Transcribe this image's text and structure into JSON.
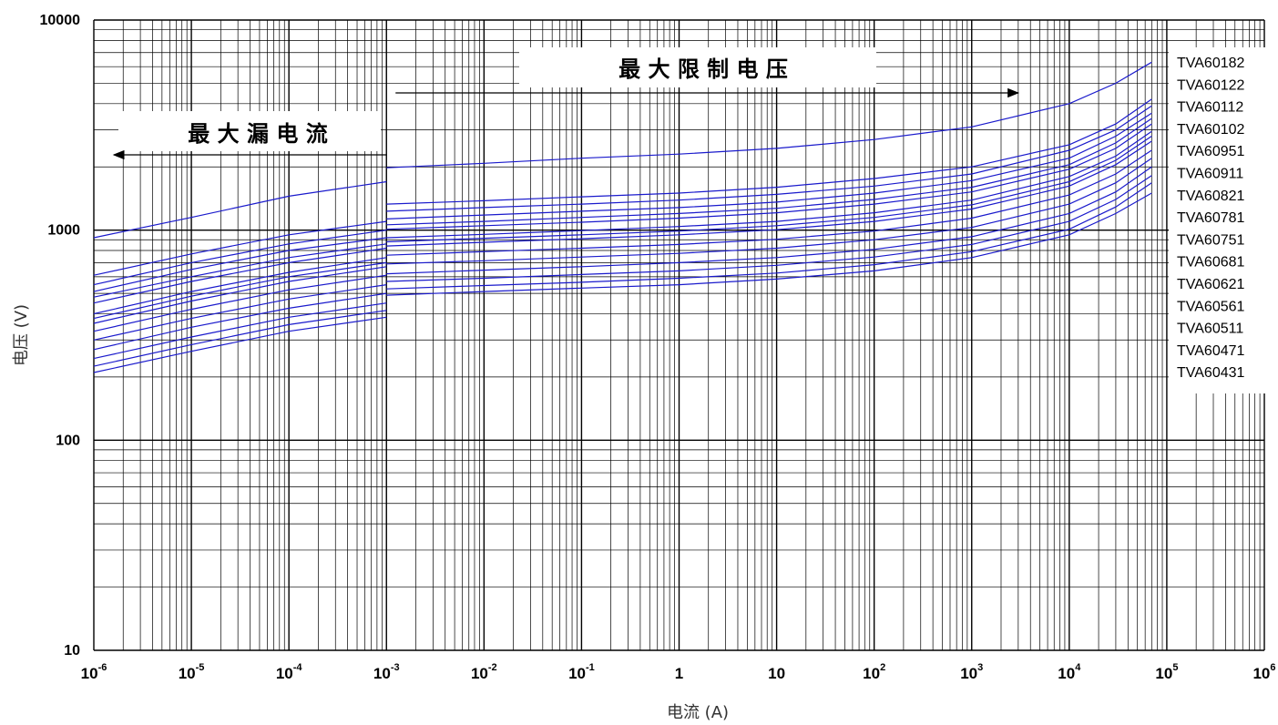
{
  "chart_data": {
    "type": "line",
    "xlabel": "电流 (A)",
    "ylabel": "电压 (V)",
    "x_scale": "log",
    "y_scale": "log",
    "xlim": [
      1e-06,
      1000000.0
    ],
    "ylim": [
      10,
      10000
    ],
    "grid": true,
    "x_ticks": [
      {
        "base": "10",
        "exp": "-6",
        "value": 1e-06
      },
      {
        "base": "10",
        "exp": "-5",
        "value": 1e-05
      },
      {
        "base": "10",
        "exp": "-4",
        "value": 0.0001
      },
      {
        "base": "10",
        "exp": "-3",
        "value": 0.001
      },
      {
        "base": "10",
        "exp": "-2",
        "value": 0.01
      },
      {
        "base": "10",
        "exp": "-1",
        "value": 0.1
      },
      {
        "base": "1",
        "exp": "",
        "value": 1
      },
      {
        "base": "10",
        "exp": "",
        "value": 10
      },
      {
        "base": "10",
        "exp": "2",
        "value": 100
      },
      {
        "base": "10",
        "exp": "3",
        "value": 1000
      },
      {
        "base": "10",
        "exp": "4",
        "value": 10000
      },
      {
        "base": "10",
        "exp": "5",
        "value": 100000
      },
      {
        "base": "10",
        "exp": "6",
        "value": 1000000
      }
    ],
    "y_ticks": [
      {
        "label": "10000",
        "value": 10000
      },
      {
        "label": "1000",
        "value": 1000
      },
      {
        "label": "100",
        "value": 100
      },
      {
        "label": "10",
        "value": 10
      }
    ],
    "annotations": [
      {
        "text": "最 大 漏 电 流",
        "arrow": "left",
        "from_x": 0.001,
        "to_x": 1e-06
      },
      {
        "text": "最 大 限 制 电 压",
        "arrow": "right",
        "from_x": 0.001,
        "to_x": 3000
      }
    ],
    "series": [
      {
        "name": "TVA60182",
        "leak": [
          [
            1e-06,
            920
          ],
          [
            1e-05,
            1150
          ],
          [
            0.0001,
            1450
          ],
          [
            0.001,
            1700
          ]
        ],
        "clamp": [
          [
            0.001,
            1980
          ],
          [
            0.01,
            2080
          ],
          [
            0.1,
            2200
          ],
          [
            1,
            2300
          ],
          [
            10,
            2450
          ],
          [
            100,
            2700
          ],
          [
            1000,
            3100
          ],
          [
            10000,
            4000
          ],
          [
            30000,
            5000
          ],
          [
            70000,
            6300
          ]
        ]
      },
      {
        "name": "TVA60122",
        "leak": [
          [
            1e-06,
            610
          ],
          [
            1e-05,
            770
          ],
          [
            0.0001,
            950
          ],
          [
            0.001,
            1100
          ]
        ],
        "clamp": [
          [
            0.001,
            1330
          ],
          [
            0.01,
            1380
          ],
          [
            0.1,
            1440
          ],
          [
            1,
            1500
          ],
          [
            10,
            1600
          ],
          [
            100,
            1760
          ],
          [
            1000,
            2000
          ],
          [
            10000,
            2550
          ],
          [
            30000,
            3200
          ],
          [
            70000,
            4200
          ]
        ]
      },
      {
        "name": "TVA60112",
        "leak": [
          [
            1e-06,
            550
          ],
          [
            1e-05,
            700
          ],
          [
            0.0001,
            860
          ],
          [
            0.001,
            1000
          ]
        ],
        "clamp": [
          [
            0.001,
            1230
          ],
          [
            0.01,
            1280
          ],
          [
            0.1,
            1330
          ],
          [
            1,
            1390
          ],
          [
            10,
            1480
          ],
          [
            100,
            1620
          ],
          [
            1000,
            1850
          ],
          [
            10000,
            2400
          ],
          [
            30000,
            3000
          ],
          [
            70000,
            3900
          ]
        ]
      },
      {
        "name": "TVA60102",
        "leak": [
          [
            1e-06,
            510
          ],
          [
            1e-05,
            650
          ],
          [
            0.0001,
            800
          ],
          [
            0.001,
            920
          ]
        ],
        "clamp": [
          [
            0.001,
            1130
          ],
          [
            0.01,
            1180
          ],
          [
            0.1,
            1230
          ],
          [
            1,
            1280
          ],
          [
            10,
            1360
          ],
          [
            100,
            1500
          ],
          [
            1000,
            1720
          ],
          [
            10000,
            2200
          ],
          [
            30000,
            2800
          ],
          [
            70000,
            3600
          ]
        ]
      },
      {
        "name": "TVA60951",
        "leak": [
          [
            1e-06,
            480
          ],
          [
            1e-05,
            600
          ],
          [
            0.0001,
            740
          ],
          [
            0.001,
            860
          ]
        ],
        "clamp": [
          [
            0.001,
            1060
          ],
          [
            0.01,
            1100
          ],
          [
            0.1,
            1150
          ],
          [
            1,
            1200
          ],
          [
            10,
            1270
          ],
          [
            100,
            1400
          ],
          [
            1000,
            1600
          ],
          [
            10000,
            2050
          ],
          [
            30000,
            2600
          ],
          [
            70000,
            3400
          ]
        ]
      },
      {
        "name": "TVA60911",
        "leak": [
          [
            1e-06,
            450
          ],
          [
            1e-05,
            570
          ],
          [
            0.0001,
            700
          ],
          [
            0.001,
            820
          ]
        ],
        "clamp": [
          [
            0.001,
            1010
          ],
          [
            0.01,
            1050
          ],
          [
            0.1,
            1090
          ],
          [
            1,
            1140
          ],
          [
            10,
            1210
          ],
          [
            100,
            1330
          ],
          [
            1000,
            1520
          ],
          [
            10000,
            1950
          ],
          [
            30000,
            2450
          ],
          [
            70000,
            3200
          ]
        ]
      },
      {
        "name": "TVA60821",
        "leak": [
          [
            1e-06,
            400
          ],
          [
            1e-05,
            510
          ],
          [
            0.0001,
            630
          ],
          [
            0.001,
            740
          ]
        ],
        "clamp": [
          [
            0.001,
            920
          ],
          [
            0.01,
            955
          ],
          [
            0.1,
            995
          ],
          [
            1,
            1040
          ],
          [
            10,
            1100
          ],
          [
            100,
            1210
          ],
          [
            1000,
            1390
          ],
          [
            10000,
            1800
          ],
          [
            30000,
            2250
          ],
          [
            70000,
            2950
          ]
        ]
      },
      {
        "name": "TVA60781",
        "leak": [
          [
            1e-06,
            380
          ],
          [
            1e-05,
            485
          ],
          [
            0.0001,
            600
          ],
          [
            0.001,
            700
          ]
        ],
        "clamp": [
          [
            0.001,
            880
          ],
          [
            0.01,
            915
          ],
          [
            0.1,
            950
          ],
          [
            1,
            990
          ],
          [
            10,
            1050
          ],
          [
            100,
            1150
          ],
          [
            1000,
            1320
          ],
          [
            10000,
            1700
          ],
          [
            30000,
            2150
          ],
          [
            70000,
            2800
          ]
        ]
      },
      {
        "name": "TVA60751",
        "leak": [
          [
            1e-06,
            360
          ],
          [
            1e-05,
            460
          ],
          [
            0.0001,
            570
          ],
          [
            0.001,
            670
          ]
        ],
        "clamp": [
          [
            0.001,
            840
          ],
          [
            0.01,
            875
          ],
          [
            0.1,
            910
          ],
          [
            1,
            950
          ],
          [
            10,
            1005
          ],
          [
            100,
            1100
          ],
          [
            1000,
            1260
          ],
          [
            10000,
            1620
          ],
          [
            30000,
            2050
          ],
          [
            70000,
            2650
          ]
        ]
      },
      {
        "name": "TVA60681",
        "leak": [
          [
            1e-06,
            330
          ],
          [
            1e-05,
            420
          ],
          [
            0.0001,
            520
          ],
          [
            0.001,
            610
          ]
        ],
        "clamp": [
          [
            0.001,
            760
          ],
          [
            0.01,
            790
          ],
          [
            0.1,
            820
          ],
          [
            1,
            855
          ],
          [
            10,
            905
          ],
          [
            100,
            990
          ],
          [
            1000,
            1140
          ],
          [
            10000,
            1470
          ],
          [
            30000,
            1850
          ],
          [
            70000,
            2400
          ]
        ]
      },
      {
        "name": "TVA60621",
        "leak": [
          [
            1e-06,
            300
          ],
          [
            1e-05,
            380
          ],
          [
            0.0001,
            470
          ],
          [
            0.001,
            550
          ]
        ],
        "clamp": [
          [
            0.001,
            690
          ],
          [
            0.01,
            715
          ],
          [
            0.1,
            745
          ],
          [
            1,
            775
          ],
          [
            10,
            820
          ],
          [
            100,
            900
          ],
          [
            1000,
            1030
          ],
          [
            10000,
            1330
          ],
          [
            30000,
            1680
          ],
          [
            70000,
            2200
          ]
        ]
      },
      {
        "name": "TVA60561",
        "leak": [
          [
            1e-06,
            270
          ],
          [
            1e-05,
            345
          ],
          [
            0.0001,
            425
          ],
          [
            0.001,
            500
          ]
        ],
        "clamp": [
          [
            0.001,
            620
          ],
          [
            0.01,
            645
          ],
          [
            0.1,
            670
          ],
          [
            1,
            700
          ],
          [
            10,
            740
          ],
          [
            100,
            810
          ],
          [
            1000,
            930
          ],
          [
            10000,
            1200
          ],
          [
            30000,
            1520
          ],
          [
            70000,
            2000
          ]
        ]
      },
      {
        "name": "TVA60511",
        "leak": [
          [
            1e-06,
            245
          ],
          [
            1e-05,
            310
          ],
          [
            0.0001,
            385
          ],
          [
            0.001,
            450
          ]
        ],
        "clamp": [
          [
            0.001,
            570
          ],
          [
            0.01,
            590
          ],
          [
            0.1,
            615
          ],
          [
            1,
            640
          ],
          [
            10,
            680
          ],
          [
            100,
            745
          ],
          [
            1000,
            855
          ],
          [
            10000,
            1100
          ],
          [
            30000,
            1400
          ],
          [
            70000,
            1820
          ]
        ]
      },
      {
        "name": "TVA60471",
        "leak": [
          [
            1e-06,
            225
          ],
          [
            1e-05,
            285
          ],
          [
            0.0001,
            355
          ],
          [
            0.001,
            415
          ]
        ],
        "clamp": [
          [
            0.001,
            525
          ],
          [
            0.01,
            545
          ],
          [
            0.1,
            565
          ],
          [
            1,
            590
          ],
          [
            10,
            625
          ],
          [
            100,
            685
          ],
          [
            1000,
            790
          ],
          [
            10000,
            1010
          ],
          [
            30000,
            1290
          ],
          [
            70000,
            1680
          ]
        ]
      },
      {
        "name": "TVA60431",
        "leak": [
          [
            1e-06,
            210
          ],
          [
            1e-05,
            265
          ],
          [
            0.0001,
            330
          ],
          [
            0.001,
            385
          ]
        ],
        "clamp": [
          [
            0.001,
            490
          ],
          [
            0.01,
            510
          ],
          [
            0.1,
            530
          ],
          [
            1,
            550
          ],
          [
            10,
            585
          ],
          [
            100,
            640
          ],
          [
            1000,
            740
          ],
          [
            10000,
            950
          ],
          [
            30000,
            1200
          ],
          [
            70000,
            1500
          ]
        ]
      }
    ]
  },
  "colors": {
    "curve": "#1a1acc",
    "grid_major": "#000000",
    "grid_minor": "#000000",
    "background": "#ffffff"
  }
}
